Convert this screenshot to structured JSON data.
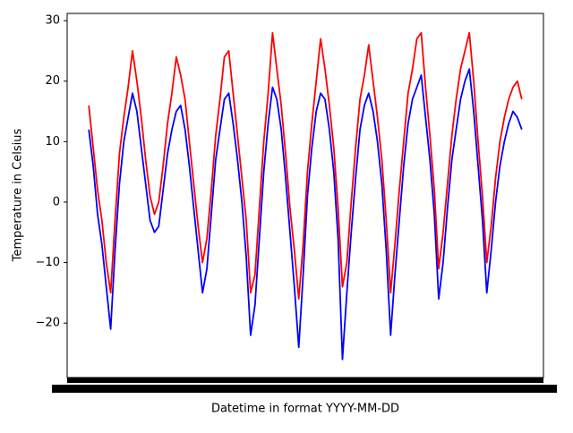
{
  "chart_data": {
    "type": "line",
    "xlabel": "Datetime in format YYYY-MM-DD",
    "ylabel": "Temperature in Celsius",
    "categories": [
      null,
      null,
      null,
      null,
      null,
      null,
      null,
      null,
      null,
      null,
      null,
      null,
      null,
      null,
      null,
      null,
      null,
      null,
      null,
      null,
      null,
      null,
      null,
      null,
      null,
      null,
      null,
      null,
      null,
      null,
      null,
      null,
      null,
      null,
      null,
      null,
      null,
      null,
      null,
      null,
      null,
      null,
      null,
      null,
      null,
      null,
      null,
      null,
      null,
      null,
      null,
      null,
      null,
      null,
      null,
      null,
      null,
      null,
      null,
      null,
      null,
      null,
      null,
      null,
      null,
      null,
      null,
      null,
      null,
      null,
      null,
      null,
      null,
      null,
      null,
      null,
      null,
      null,
      null,
      null,
      null,
      null,
      null,
      null,
      null,
      null,
      null,
      null,
      null,
      null,
      null,
      null,
      null,
      null,
      null,
      null,
      null,
      null,
      null,
      null
    ],
    "series": [
      {
        "color": "#0000ff",
        "values": [
          12,
          6,
          -2,
          -7,
          -14,
          -21,
          -8,
          3,
          10,
          14,
          18,
          15,
          9,
          3,
          -3,
          -5,
          -4,
          2,
          8,
          12,
          15,
          16,
          12,
          6,
          -1,
          -8,
          -15,
          -11,
          -2,
          7,
          12,
          17,
          18,
          13,
          7,
          0,
          -9,
          -22,
          -17,
          -6,
          5,
          13,
          19,
          17,
          12,
          4,
          -5,
          -14,
          -24,
          -12,
          1,
          9,
          15,
          18,
          17,
          12,
          5,
          -6,
          -26,
          -15,
          -5,
          4,
          12,
          16,
          18,
          15,
          10,
          3,
          -8,
          -22,
          -12,
          -3,
          6,
          13,
          17,
          19,
          21,
          14,
          7,
          -2,
          -16,
          -10,
          -1,
          7,
          12,
          17,
          20,
          22,
          15,
          6,
          -3,
          -15,
          -8,
          0,
          6,
          10,
          13,
          15,
          14,
          12
        ]
      },
      {
        "color": "#ff0000",
        "values": [
          16,
          9,
          2,
          -3,
          -10,
          -15,
          -3,
          8,
          14,
          19,
          25,
          20,
          14,
          7,
          1,
          -2,
          0,
          6,
          13,
          18,
          24,
          21,
          17,
          10,
          3,
          -4,
          -10,
          -6,
          2,
          11,
          17,
          24,
          25,
          18,
          11,
          4,
          -3,
          -15,
          -12,
          -1,
          10,
          18,
          28,
          22,
          16,
          8,
          -1,
          -8,
          -16,
          -7,
          5,
          13,
          20,
          27,
          22,
          16,
          9,
          -1,
          -14,
          -10,
          0,
          9,
          17,
          21,
          26,
          20,
          14,
          7,
          -3,
          -15,
          -7,
          2,
          10,
          18,
          22,
          27,
          28,
          19,
          11,
          2,
          -11,
          -5,
          3,
          11,
          17,
          22,
          25,
          28,
          20,
          10,
          1,
          -10,
          -4,
          4,
          10,
          14,
          17,
          19,
          20,
          17
        ]
      }
    ],
    "ylim": [
      -29,
      31.2
    ],
    "yticks": [
      {
        "value": -20,
        "label": "−20"
      },
      {
        "value": -10,
        "label": "−10"
      },
      0,
      10,
      20,
      30
    ]
  }
}
